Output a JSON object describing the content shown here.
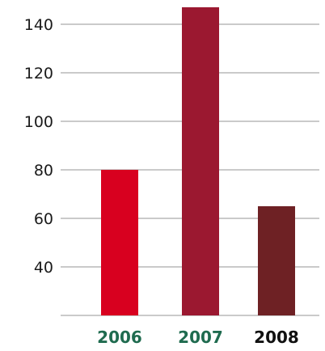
{
  "chart_data": {
    "type": "bar",
    "title": "",
    "xlabel": "",
    "ylabel": "",
    "categories": [
      "2006",
      "2007",
      "2008"
    ],
    "values": [
      80,
      147,
      65
    ],
    "ylim": [
      20,
      150
    ],
    "yticks": [
      40,
      60,
      80,
      100,
      120,
      140
    ],
    "grid": true,
    "bar_colors": [
      "#d8001f",
      "#9b1830",
      "#6e2124"
    ],
    "category_label_colors": [
      "#1f6b4f",
      "#1f6b4f",
      "#111111"
    ],
    "grid_color": "#b8b8b8"
  }
}
